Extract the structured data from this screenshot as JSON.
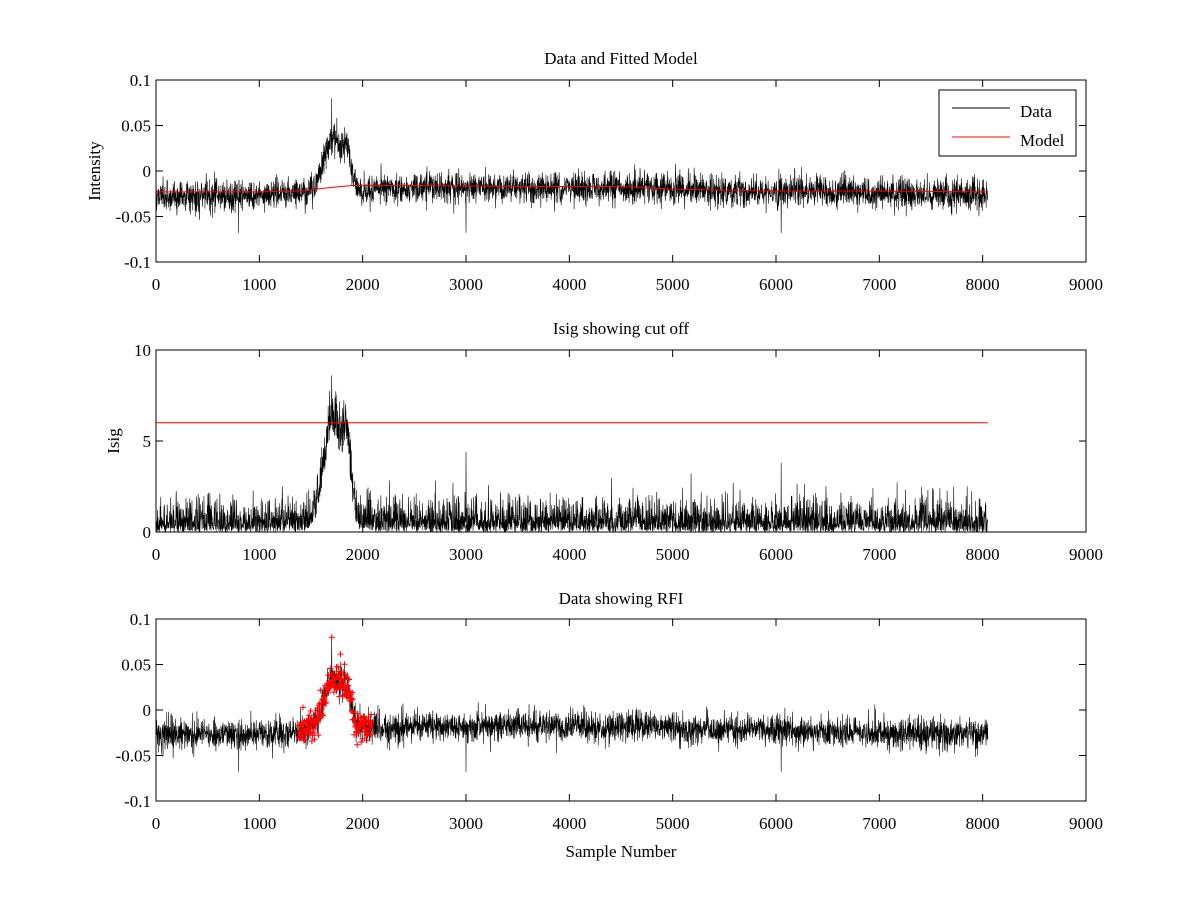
{
  "figure": {
    "background": "#ffffff",
    "colors": {
      "data": "#000000",
      "model": "#ff0000",
      "rfi": "#ff0000"
    }
  },
  "chart_data": [
    {
      "type": "line",
      "title": "Data and Fitted Model",
      "xlabel": "",
      "ylabel": "Intensity",
      "xlim": [
        0,
        9000
      ],
      "ylim": [
        -0.1,
        0.1
      ],
      "xticks": [
        0,
        1000,
        2000,
        3000,
        4000,
        5000,
        6000,
        7000,
        8000,
        9000
      ],
      "yticks": [
        -0.1,
        -0.05,
        0,
        0.05,
        0.1
      ],
      "xtick_labels": [
        "0",
        "1000",
        "2000",
        "3000",
        "4000",
        "5000",
        "6000",
        "7000",
        "8000",
        "9000"
      ],
      "ytick_labels": [
        "-0.1",
        "-0.05",
        "0",
        "0.05",
        "0.1"
      ],
      "legend": {
        "position": "top-right",
        "entries": [
          "Data",
          "Model"
        ]
      },
      "series": [
        {
          "name": "Data",
          "color": "#000000",
          "style": "noisy-line",
          "x_range": [
            0,
            8050
          ],
          "baseline": [
            [
              0,
              -0.027
            ],
            [
              1000,
              -0.027
            ],
            [
              1500,
              -0.022
            ],
            [
              2500,
              -0.018
            ],
            [
              4500,
              -0.018
            ],
            [
              5500,
              -0.022
            ],
            [
              8050,
              -0.026
            ]
          ],
          "noise_sd": 0.0085,
          "bursts": [
            {
              "center": 1720,
              "width": 90,
              "peak": 0.06
            },
            {
              "center": 1850,
              "width": 40,
              "peak": 0.03
            }
          ],
          "notable_points": [
            [
              1700,
              0.08
            ],
            [
              800,
              -0.068
            ],
            [
              3000,
              -0.068
            ],
            [
              6050,
              -0.068
            ]
          ]
        },
        {
          "name": "Model",
          "color": "#ff0000",
          "style": "line",
          "x": [
            0,
            1000,
            1400,
            1700,
            1900,
            2500,
            3500,
            4500,
            5000,
            6000,
            7000,
            8050
          ],
          "y": [
            -0.023,
            -0.023,
            -0.022,
            -0.018,
            -0.016,
            -0.016,
            -0.017,
            -0.017,
            -0.02,
            -0.022,
            -0.022,
            -0.023
          ]
        }
      ]
    },
    {
      "type": "line",
      "title": "Isig showing cut off",
      "xlabel": "",
      "ylabel": "Isig",
      "xlim": [
        0,
        9000
      ],
      "ylim": [
        0,
        10
      ],
      "xticks": [
        0,
        1000,
        2000,
        3000,
        4000,
        5000,
        6000,
        7000,
        8000,
        9000
      ],
      "yticks": [
        0,
        5,
        10
      ],
      "xtick_labels": [
        "0",
        "1000",
        "2000",
        "3000",
        "4000",
        "5000",
        "6000",
        "7000",
        "8000",
        "9000"
      ],
      "ytick_labels": [
        "0",
        "5",
        "10"
      ],
      "series": [
        {
          "name": "Isig",
          "color": "#000000",
          "style": "noisy-line-abs",
          "x_range": [
            0,
            8050
          ],
          "baseline": [
            [
              0,
              0.0
            ],
            [
              8050,
              0.0
            ]
          ],
          "noise_sd": 0.85,
          "bursts": [
            {
              "center": 1720,
              "width": 90,
              "peak": 6.3
            },
            {
              "center": 1850,
              "width": 40,
              "peak": 3.0
            }
          ],
          "notable_points": [
            [
              1700,
              8.6
            ],
            [
              3000,
              4.4
            ],
            [
              6050,
              3.8
            ]
          ]
        },
        {
          "name": "Cut off",
          "color": "#ff0000",
          "style": "line",
          "x": [
            0,
            8050
          ],
          "y": [
            6,
            6
          ]
        }
      ]
    },
    {
      "type": "line",
      "title": "Data showing RFI",
      "xlabel": "Sample Number",
      "ylabel": "",
      "xlim": [
        0,
        9000
      ],
      "ylim": [
        -0.1,
        0.1
      ],
      "xticks": [
        0,
        1000,
        2000,
        3000,
        4000,
        5000,
        6000,
        7000,
        8000,
        9000
      ],
      "yticks": [
        -0.1,
        -0.05,
        0,
        0.05,
        0.1
      ],
      "xtick_labels": [
        "0",
        "1000",
        "2000",
        "3000",
        "4000",
        "5000",
        "6000",
        "7000",
        "8000",
        "9000"
      ],
      "ytick_labels": [
        "-0.1",
        "-0.05",
        "0",
        "0.05",
        "0.1"
      ],
      "series": [
        {
          "name": "Data",
          "color": "#000000",
          "style": "noisy-line",
          "x_range": [
            0,
            8050
          ],
          "baseline": [
            [
              0,
              -0.027
            ],
            [
              1000,
              -0.027
            ],
            [
              1500,
              -0.022
            ],
            [
              2500,
              -0.018
            ],
            [
              4500,
              -0.018
            ],
            [
              5500,
              -0.022
            ],
            [
              8050,
              -0.026
            ]
          ],
          "noise_sd": 0.0085,
          "bursts": [
            {
              "center": 1720,
              "width": 90,
              "peak": 0.06
            },
            {
              "center": 1850,
              "width": 40,
              "peak": 0.03
            }
          ],
          "notable_points": [
            [
              1700,
              0.08
            ],
            [
              800,
              -0.068
            ],
            [
              3000,
              -0.068
            ],
            [
              6050,
              -0.068
            ]
          ]
        },
        {
          "name": "RFI",
          "color": "#ff0000",
          "style": "markers",
          "marker": "+",
          "x_range": [
            1380,
            2090
          ],
          "y_range": [
            -0.045,
            0.08
          ]
        }
      ]
    }
  ]
}
